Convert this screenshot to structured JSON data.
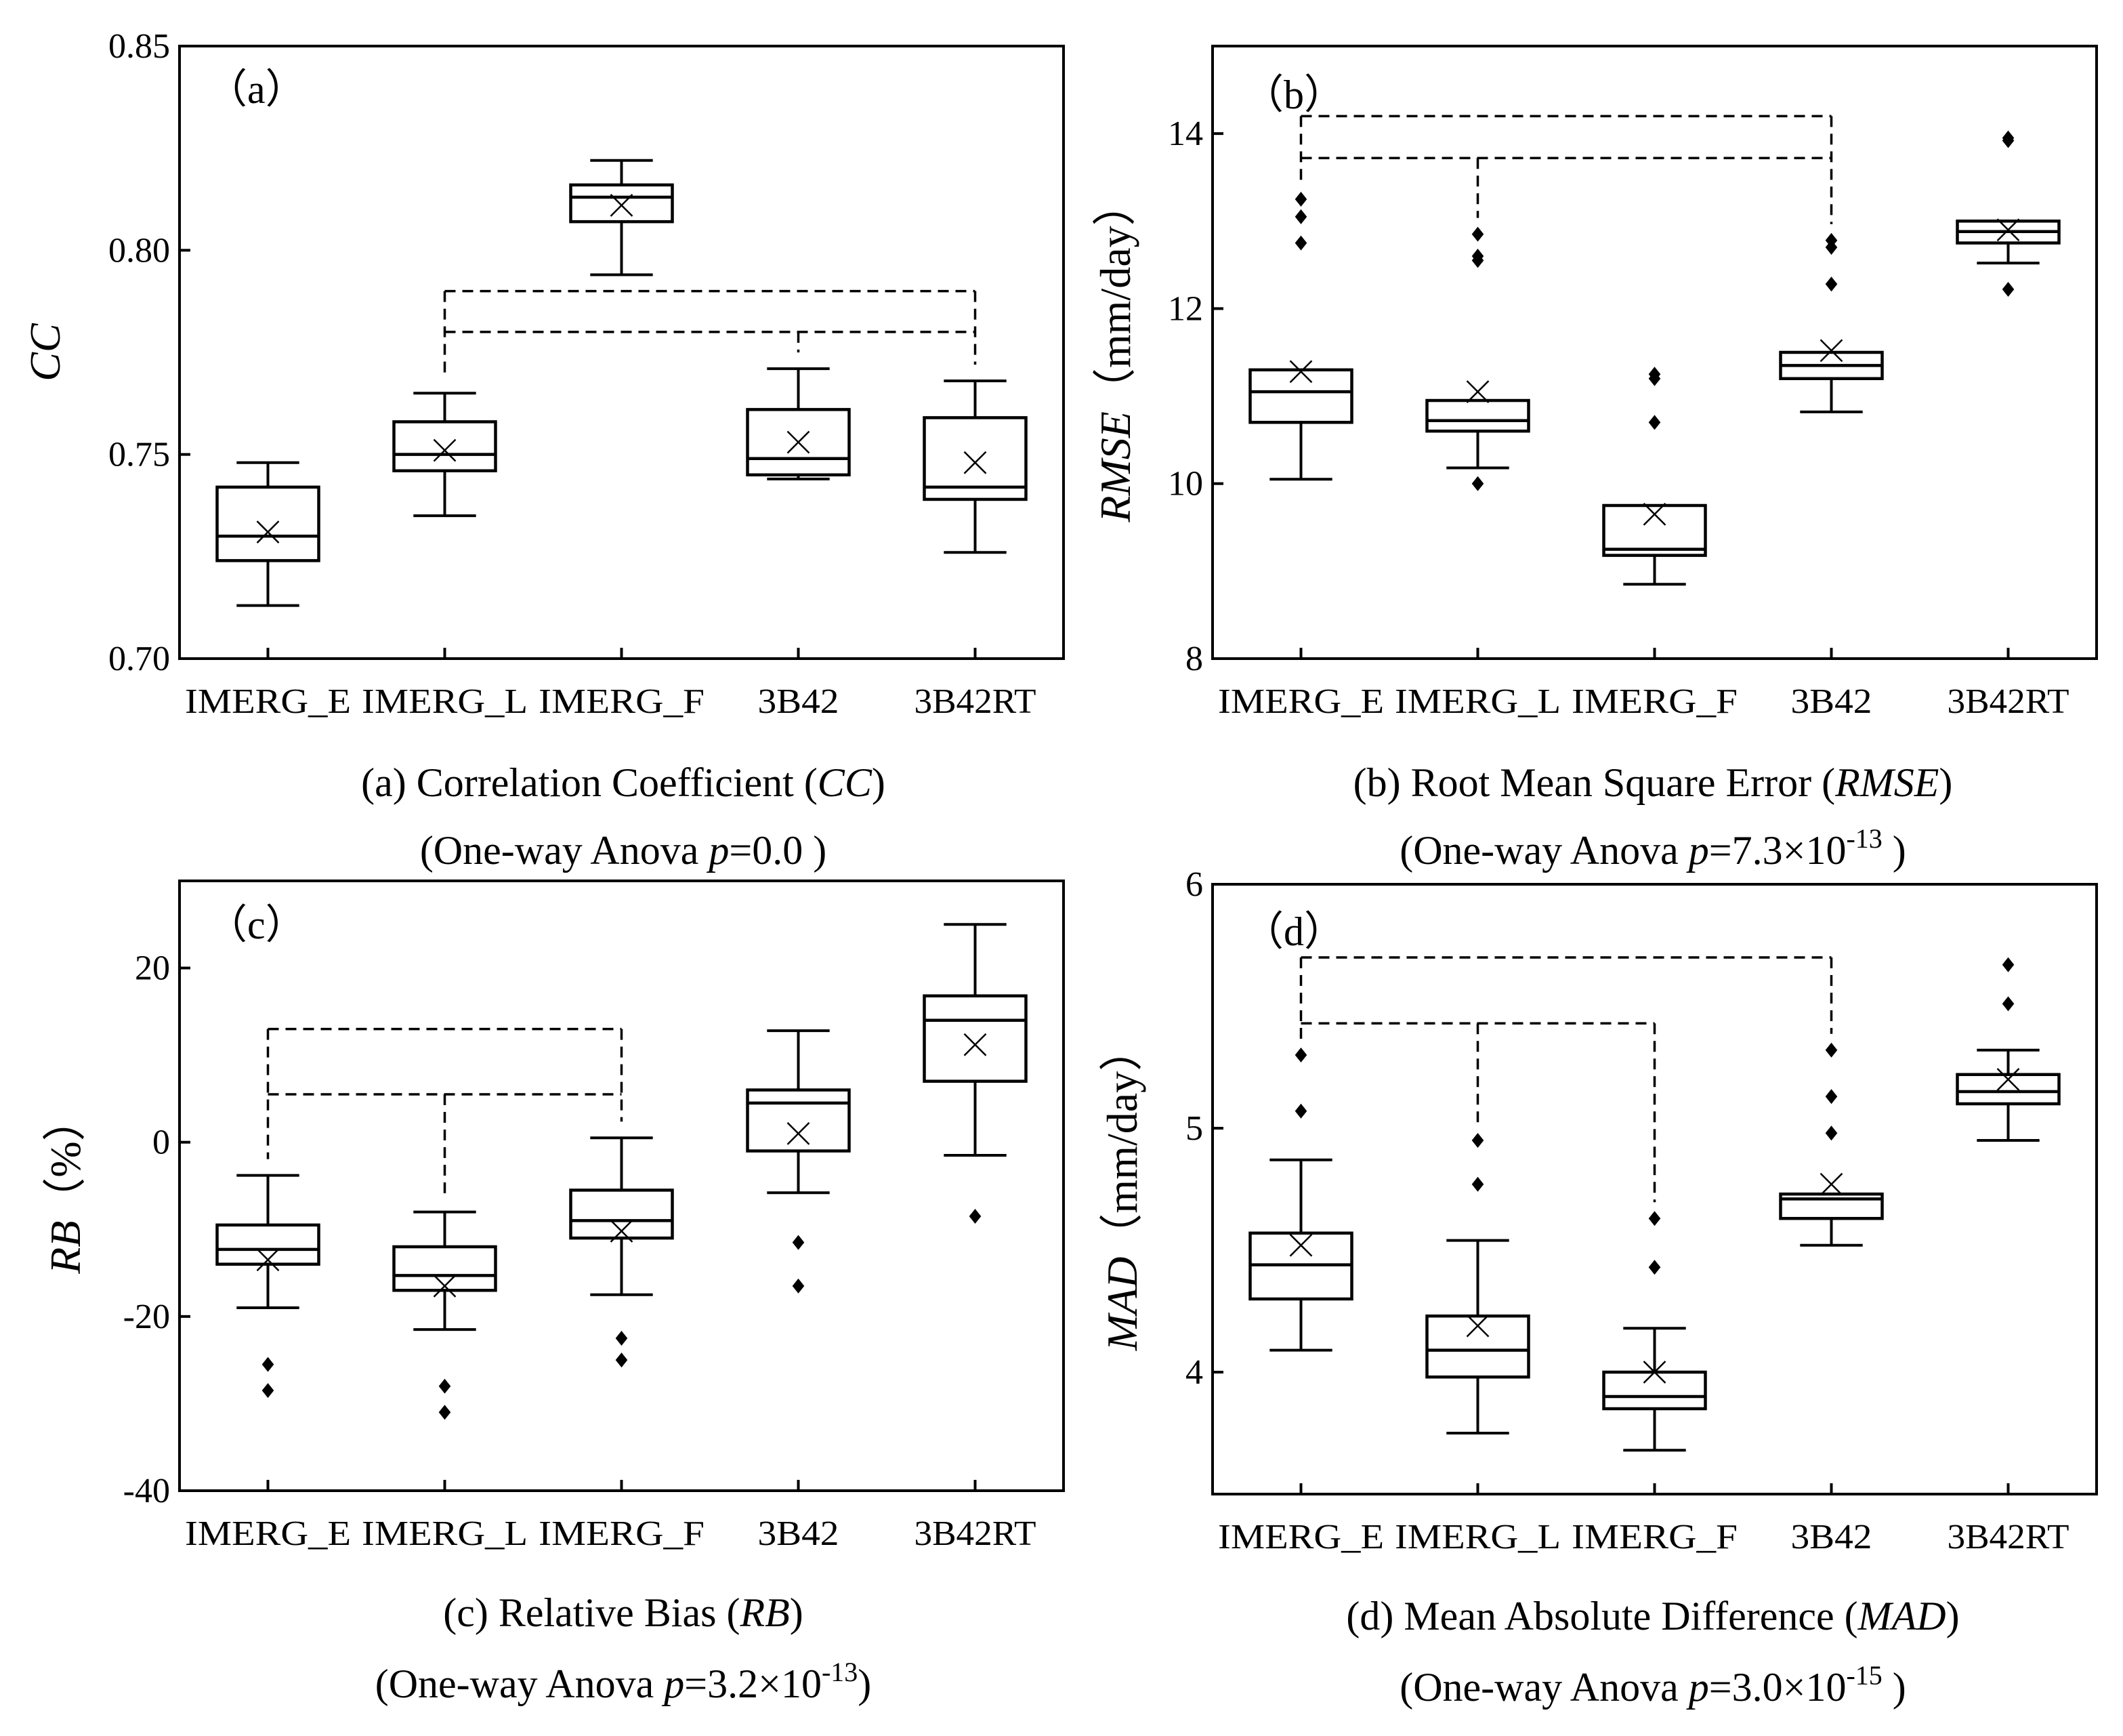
{
  "figure": {
    "panels": [
      {
        "tag": "（a）",
        "caption_line1": {
          "pre": "(a) Correlation Coefficient (",
          "it": "CC",
          "post": ")"
        },
        "caption_line2": {
          "pre": "(One-way Anova  ",
          "it": "p",
          "eq": "=0.0",
          "base": "",
          "exp": "",
          "post": " )"
        }
      },
      {
        "tag": "（b）",
        "caption_line1": {
          "pre": "(b) Root Mean Square Error (",
          "it": "RMSE",
          "post": ")"
        },
        "caption_line2": {
          "pre": "(One-way Anova  ",
          "it": "p",
          "eq": "=7.3×10",
          "base": "",
          "exp": "-13",
          "post": " )"
        }
      },
      {
        "tag": "（c）",
        "caption_line1": {
          "pre": "(c) Relative Bias (",
          "it": "RB",
          "post": ")"
        },
        "caption_line2": {
          "pre": "(One-way Anova  ",
          "it": "p",
          "eq": "=3.2×10",
          "base": "",
          "exp": "-13",
          "post": ")"
        }
      },
      {
        "tag": "（d）",
        "caption_line1": {
          "pre": "(d) Mean Absolute Difference (",
          "it": "MAD",
          "post": ")"
        },
        "caption_line2": {
          "pre": "(One-way Anova  ",
          "it": "p",
          "eq": "=3.0×10",
          "base": "",
          "exp": "-15",
          "post": " )"
        }
      }
    ]
  },
  "chart_data": [
    {
      "type": "box",
      "title": "(a) Correlation Coefficient (CC)",
      "ylabel": "CC",
      "ylabel_unit": "",
      "ylim": [
        0.7,
        0.85
      ],
      "yticks": [
        0.7,
        0.75,
        0.8,
        0.85
      ],
      "ytick_labels": [
        "0.70",
        "0.75",
        "0.80",
        "0.85"
      ],
      "categories": [
        "IMERG_E",
        "IMERG_L",
        "IMERG_F",
        "3B42",
        "3B42RT"
      ],
      "tick_labels_display": [
        "IMERG_E",
        "IMERG_L",
        "IMERG_F",
        "3B42",
        "3B42RT"
      ],
      "boxes": [
        {
          "min": 0.713,
          "q1": 0.724,
          "median": 0.73,
          "q3": 0.742,
          "max": 0.748,
          "mean": 0.731,
          "outliers": []
        },
        {
          "min": 0.735,
          "q1": 0.746,
          "median": 0.75,
          "q3": 0.758,
          "max": 0.765,
          "mean": 0.751,
          "outliers": []
        },
        {
          "min": 0.794,
          "q1": 0.807,
          "median": 0.813,
          "q3": 0.816,
          "max": 0.822,
          "mean": 0.811,
          "outliers": []
        },
        {
          "min": 0.744,
          "q1": 0.745,
          "median": 0.749,
          "q3": 0.761,
          "max": 0.771,
          "mean": 0.753,
          "outliers": []
        },
        {
          "min": 0.726,
          "q1": 0.739,
          "median": 0.742,
          "q3": 0.759,
          "max": 0.768,
          "mean": 0.748,
          "outliers": []
        }
      ],
      "groups": [
        {
          "level": 0.79,
          "from": 1,
          "to": 4,
          "drops": [
            1,
            4
          ]
        },
        {
          "level": 0.78,
          "from": 1,
          "to": 4,
          "drops": [
            3
          ]
        }
      ]
    },
    {
      "type": "box",
      "title": "(b) Root Mean Square Error (RMSE)",
      "ylabel": "RMSE",
      "ylabel_unit": "（mm/day）",
      "ylim": [
        8,
        15
      ],
      "yticks": [
        8,
        10,
        12,
        14
      ],
      "ytick_labels": [
        "8",
        "10",
        "12",
        "14"
      ],
      "categories": [
        "IMERG_E",
        "IMERG_L",
        "IMERG_F",
        "3B42",
        "3B42RT"
      ],
      "tick_labels_display": [
        "IMERG_E",
        "IMERG_L",
        "IMERG_F",
        "3B42",
        "3B42RT"
      ],
      "boxes": [
        {
          "min": 10.05,
          "q1": 10.7,
          "median": 11.05,
          "q3": 11.3,
          "max": 11.3,
          "mean": 11.28,
          "outliers": [
            12.75,
            13.05,
            13.25
          ]
        },
        {
          "min": 10.18,
          "q1": 10.6,
          "median": 10.72,
          "q3": 10.95,
          "max": 10.95,
          "mean": 11.05,
          "outliers": [
            10.0,
            12.55,
            12.6,
            12.85
          ]
        },
        {
          "min": 8.85,
          "q1": 9.18,
          "median": 9.25,
          "q3": 9.75,
          "max": 9.75,
          "mean": 9.65,
          "outliers": [
            10.7,
            11.2,
            11.25
          ]
        },
        {
          "min": 10.82,
          "q1": 11.2,
          "median": 11.35,
          "q3": 11.5,
          "max": 11.5,
          "mean": 11.52,
          "outliers": [
            12.28,
            12.7,
            12.78
          ]
        },
        {
          "min": 12.52,
          "q1": 12.75,
          "median": 12.88,
          "q3": 13.0,
          "max": 13.0,
          "mean": 12.9,
          "outliers": [
            12.22,
            13.92,
            13.95
          ]
        }
      ],
      "groups": [
        {
          "level": 14.2,
          "from": 0,
          "to": 3,
          "drops": [
            0,
            3
          ]
        },
        {
          "level": 13.72,
          "from": 0,
          "to": 3,
          "drops": [
            1
          ]
        }
      ]
    },
    {
      "type": "box",
      "title": "(c) Relative Bias (RB)",
      "ylabel": "RB",
      "ylabel_unit": "（%）",
      "ylim": [
        -40,
        30
      ],
      "yticks": [
        -40,
        -20,
        0,
        20
      ],
      "ytick_labels": [
        "-40",
        "-20",
        "0",
        "20"
      ],
      "categories": [
        "IMERG_E",
        "IMERG_L",
        "IMERG_F",
        "3B42",
        "3B42RT"
      ],
      "tick_labels_display": [
        "IMERG_E",
        "IMERG_L",
        "IMERG_F",
        "3B42",
        "3B42RT"
      ],
      "boxes": [
        {
          "min": -19.0,
          "q1": -14.0,
          "median": -12.3,
          "q3": -9.5,
          "max": -3.8,
          "mean": -13.5,
          "outliers": [
            -25.5,
            -28.5
          ]
        },
        {
          "min": -21.5,
          "q1": -17.0,
          "median": -15.3,
          "q3": -12.0,
          "max": -8.0,
          "mean": -16.5,
          "outliers": [
            -28.0,
            -31.0
          ]
        },
        {
          "min": -17.5,
          "q1": -11.0,
          "median": -9.0,
          "q3": -5.5,
          "max": 0.5,
          "mean": -10.2,
          "outliers": [
            -22.5,
            -25.0
          ]
        },
        {
          "min": -5.8,
          "q1": -1.0,
          "median": 4.5,
          "q3": 6.0,
          "max": 12.8,
          "mean": 1.0,
          "outliers": [
            -11.5,
            -16.5
          ]
        },
        {
          "min": -1.5,
          "q1": 7.0,
          "median": 14.0,
          "q3": 16.8,
          "max": 25.0,
          "mean": 11.2,
          "outliers": [
            -8.5
          ]
        }
      ],
      "groups": [
        {
          "level": 13.0,
          "from": 0,
          "to": 2,
          "drops": [
            0,
            2
          ]
        },
        {
          "level": 5.5,
          "from": 0,
          "to": 2,
          "drops": [
            1
          ]
        }
      ]
    },
    {
      "type": "box",
      "title": "(d) Mean Absolute Difference (MAD)",
      "ylabel": "MAD",
      "ylabel_unit": "（mm/day）",
      "ylim": [
        3.5,
        6
      ],
      "yticks": [
        4,
        5,
        6
      ],
      "ytick_labels": [
        "4",
        "5",
        "6"
      ],
      "categories": [
        "IMERG_E",
        "IMERG_L",
        "IMERG_F",
        "3B42",
        "3B42RT"
      ],
      "tick_labels_display": [
        "IMERG_E",
        "IMERG_L",
        "IMERG_F",
        "3B42",
        "3B42RT"
      ],
      "boxes": [
        {
          "min": 4.09,
          "q1": 4.3,
          "median": 4.44,
          "q3": 4.57,
          "max": 4.87,
          "mean": 4.52,
          "outliers": [
            5.07,
            5.3
          ]
        },
        {
          "min": 3.75,
          "q1": 3.98,
          "median": 4.09,
          "q3": 4.23,
          "max": 4.54,
          "mean": 4.19,
          "outliers": [
            4.77,
            4.95
          ]
        },
        {
          "min": 3.68,
          "q1": 3.85,
          "median": 3.9,
          "q3": 4.0,
          "max": 4.18,
          "mean": 4.0,
          "outliers": [
            4.43,
            4.63
          ]
        },
        {
          "min": 4.52,
          "q1": 4.63,
          "median": 4.71,
          "q3": 4.73,
          "max": 4.73,
          "mean": 4.77,
          "outliers": [
            4.98,
            5.13,
            5.32
          ]
        },
        {
          "min": 4.95,
          "q1": 5.1,
          "median": 5.15,
          "q3": 5.22,
          "max": 5.32,
          "mean": 5.2,
          "outliers": [
            5.51,
            5.67
          ]
        }
      ],
      "groups": [
        {
          "level": 5.7,
          "from": 0,
          "to": 3,
          "drops": [
            0,
            3
          ]
        },
        {
          "level": 5.43,
          "from": 0,
          "to": 2,
          "drops": [
            1,
            2
          ]
        }
      ]
    }
  ]
}
